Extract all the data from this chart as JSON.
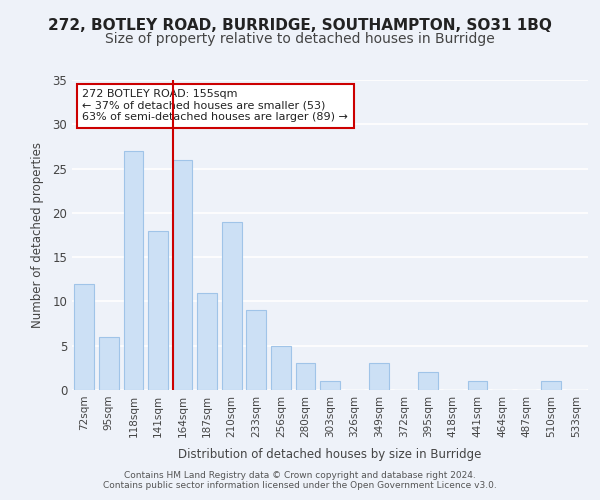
{
  "title": "272, BOTLEY ROAD, BURRIDGE, SOUTHAMPTON, SO31 1BQ",
  "subtitle": "Size of property relative to detached houses in Burridge",
  "xlabel": "Distribution of detached houses by size in Burridge",
  "ylabel": "Number of detached properties",
  "bins": [
    "72sqm",
    "95sqm",
    "118sqm",
    "141sqm",
    "164sqm",
    "187sqm",
    "210sqm",
    "233sqm",
    "256sqm",
    "280sqm",
    "303sqm",
    "326sqm",
    "349sqm",
    "372sqm",
    "395sqm",
    "418sqm",
    "441sqm",
    "464sqm",
    "487sqm",
    "510sqm",
    "533sqm"
  ],
  "values": [
    12,
    6,
    27,
    18,
    26,
    11,
    19,
    9,
    5,
    3,
    1,
    0,
    3,
    0,
    2,
    0,
    1,
    0,
    0,
    1,
    0
  ],
  "bar_color": "#cce0f5",
  "bar_edge_color": "#a0c4e8",
  "vline_x_index": 4,
  "vline_color": "#cc0000",
  "annotation_text": "272 BOTLEY ROAD: 155sqm\n← 37% of detached houses are smaller (53)\n63% of semi-detached houses are larger (89) →",
  "annotation_box_color": "#ffffff",
  "annotation_box_edge": "#cc0000",
  "ylim": [
    0,
    35
  ],
  "yticks": [
    0,
    5,
    10,
    15,
    20,
    25,
    30,
    35
  ],
  "footer": "Contains HM Land Registry data © Crown copyright and database right 2024.\nContains public sector information licensed under the Open Government Licence v3.0.",
  "background_color": "#eef2f9",
  "plot_background": "#eef2f9",
  "grid_color": "#ffffff",
  "title_fontsize": 11,
  "subtitle_fontsize": 10
}
